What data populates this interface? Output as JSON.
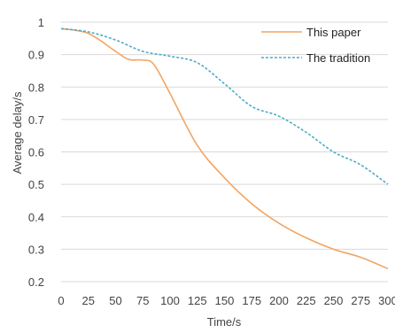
{
  "chart_data": {
    "type": "line",
    "title": "",
    "xlabel": "Time/s",
    "ylabel": "Average delay/s",
    "xlim": [
      0,
      300
    ],
    "ylim": [
      0.2,
      1.0
    ],
    "xticks": [
      0,
      25,
      50,
      75,
      100,
      125,
      150,
      175,
      200,
      225,
      250,
      275,
      300
    ],
    "yticks": [
      0.2,
      0.3,
      0.4,
      0.5,
      0.6,
      0.7,
      0.8,
      0.9,
      1.0
    ],
    "ytick_labels": [
      "0.2",
      "0.3",
      "0.4",
      "0.5",
      "0.6",
      "0.7",
      "0.8",
      "0.9",
      "1"
    ],
    "grid": "horizontal",
    "legend_position": "top-right",
    "series": [
      {
        "name": "This paper",
        "color": "#f4a460",
        "style": "solid",
        "x": [
          0,
          25,
          50,
          62,
          75,
          85,
          100,
          125,
          150,
          175,
          200,
          225,
          250,
          275,
          300
        ],
        "y": [
          0.98,
          0.965,
          0.91,
          0.885,
          0.883,
          0.87,
          0.78,
          0.62,
          0.52,
          0.44,
          0.38,
          0.335,
          0.3,
          0.275,
          0.24
        ]
      },
      {
        "name": "The tradition",
        "color": "#4bacc6",
        "style": "dashed",
        "x": [
          0,
          25,
          50,
          75,
          100,
          125,
          150,
          175,
          200,
          225,
          250,
          275,
          300
        ],
        "y": [
          0.98,
          0.97,
          0.945,
          0.91,
          0.895,
          0.875,
          0.81,
          0.74,
          0.71,
          0.66,
          0.6,
          0.56,
          0.5
        ]
      }
    ]
  }
}
